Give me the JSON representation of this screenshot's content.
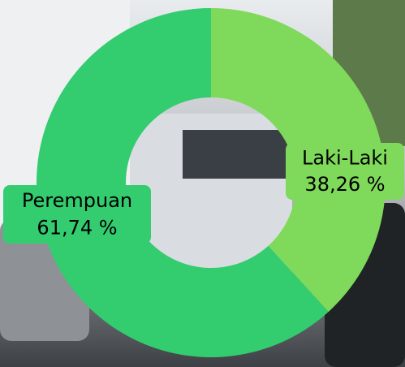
{
  "chart_data": {
    "type": "pie",
    "categories": [
      "Laki-Laki",
      "Perempuan"
    ],
    "values": [
      38.26,
      61.74
    ],
    "value_labels": [
      "38,26 %",
      "61,74 %"
    ],
    "colors": [
      "#7fd95a",
      "#33cc6f"
    ],
    "donut": true
  }
}
